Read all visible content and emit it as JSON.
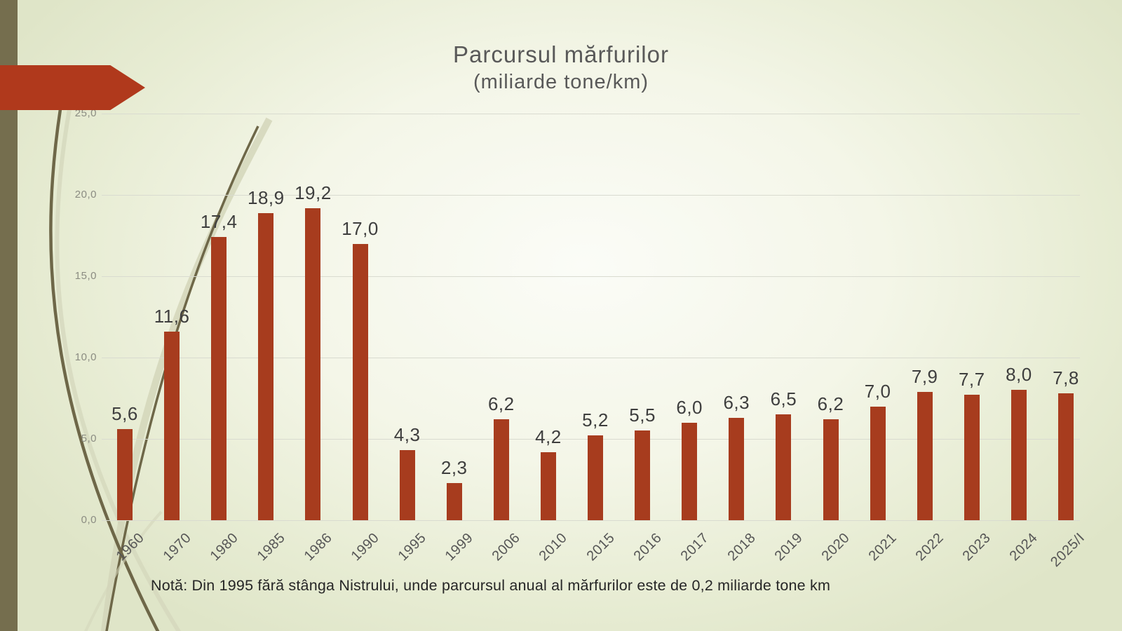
{
  "slide": {
    "title_line1": "Parcursul mărfurilor",
    "title_line2": "(miliarde tone/km)",
    "note": "Notă: Din 1995 fără stânga Nistrului, unde parcursul anual al mărfurilor este de 0,2 miliarde tone km"
  },
  "colors": {
    "bar": "#a73c1e",
    "arrow": "#b0391c",
    "stripe": "#756e4e",
    "gridline": "#d9dbd0",
    "title_text": "#595959",
    "data_label": "#3e3e3e",
    "y_axis_label": "#8b8c82",
    "x_axis_label": "#565656",
    "note_text": "#262626",
    "curve_dark": "#6e6748",
    "curve_light": "#d3d6ba"
  },
  "chart_data": {
    "type": "bar",
    "title": "Parcursul mărfurilor (miliarde tone/km)",
    "xlabel": "",
    "ylabel": "",
    "categories": [
      "1960",
      "1970",
      "1980",
      "1985",
      "1986",
      "1990",
      "1995",
      "1999",
      "2006",
      "2010",
      "2015",
      "2016",
      "2017",
      "2018",
      "2019",
      "2020",
      "2021",
      "2022",
      "2023",
      "2024",
      "2025/I"
    ],
    "values": [
      5.6,
      11.6,
      17.4,
      18.9,
      19.2,
      17.0,
      4.3,
      2.3,
      6.2,
      4.2,
      5.2,
      5.5,
      6.0,
      6.3,
      6.5,
      6.2,
      7.0,
      7.9,
      7.7,
      8.0,
      7.8
    ],
    "value_labels": [
      "5,6",
      "11,6",
      "17,4",
      "18,9",
      "19,2",
      "17,0",
      "4,3",
      "2,3",
      "6,2",
      "4,2",
      "5,2",
      "5,5",
      "6,0",
      "6,3",
      "6,5",
      "6,2",
      "7,0",
      "7,9",
      "7,7",
      "8,0",
      "7,8"
    ],
    "y_ticks": [
      {
        "value": 0,
        "label": "0,0"
      },
      {
        "value": 5,
        "label": "5,0"
      },
      {
        "value": 10,
        "label": "10,0"
      },
      {
        "value": 15,
        "label": "15,0"
      },
      {
        "value": 20,
        "label": "20,0"
      },
      {
        "value": 25,
        "label": "25,0"
      }
    ],
    "ylim": [
      0,
      25
    ],
    "grid": true,
    "legend": false
  }
}
